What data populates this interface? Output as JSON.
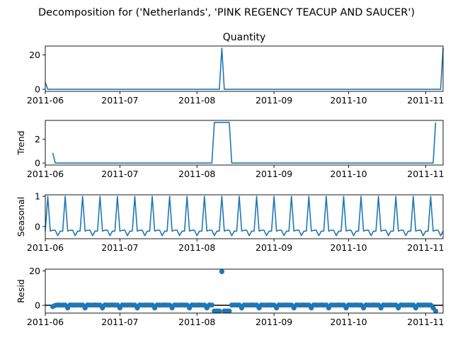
{
  "figure": {
    "suptitle": "Decomposition for ('Netherlands', 'PINK REGENCY TEACUP AND SAUCER')"
  },
  "colors": {
    "series": "#1f77b4",
    "axes": "#000000",
    "background": "#ffffff"
  },
  "chart_data": [
    {
      "type": "line",
      "title": "Quantity",
      "ylabel": "",
      "x_start": "2011-06-01",
      "x_end": "2011-11-08",
      "xlim": [
        "2011-06-01",
        "2011-11-08"
      ],
      "x_ticks": [
        "2011-06",
        "2011-07",
        "2011-08",
        "2011-09",
        "2011-10",
        "2011-11"
      ],
      "y_ticks": [
        0,
        20
      ],
      "ylim": [
        -1.2,
        25.2
      ],
      "grid": false,
      "series": [
        {
          "values": [
            {
              "x": "2011-06-01",
              "y": 4
            },
            {
              "x": "2011-06-02",
              "y": 0
            },
            {
              "x": "2011-08-10",
              "y": 0
            },
            {
              "x": "2011-08-11",
              "y": 24
            },
            {
              "x": "2011-08-12",
              "y": 0
            },
            {
              "x": "2011-11-07",
              "y": 0
            },
            {
              "x": "2011-11-08",
              "y": 24
            }
          ]
        }
      ]
    },
    {
      "type": "line",
      "title": "",
      "ylabel": "Trend",
      "x_start": "2011-06-01",
      "x_end": "2011-11-08",
      "xlim": [
        "2011-06-01",
        "2011-11-08"
      ],
      "x_ticks": [
        "2011-06",
        "2011-07",
        "2011-08",
        "2011-09",
        "2011-10",
        "2011-11"
      ],
      "y_ticks": [
        0,
        2
      ],
      "ylim": [
        -0.17,
        3.6
      ],
      "grid": false,
      "series": [
        {
          "values": [
            {
              "x": "2011-06-04",
              "y": 0.86
            },
            {
              "x": "2011-06-05",
              "y": 0
            },
            {
              "x": "2011-08-07",
              "y": 0
            },
            {
              "x": "2011-08-08",
              "y": 3.43
            },
            {
              "x": "2011-08-14",
              "y": 3.43
            },
            {
              "x": "2011-08-15",
              "y": 0
            },
            {
              "x": "2011-11-04",
              "y": 0
            },
            {
              "x": "2011-11-05",
              "y": 3.43
            }
          ]
        }
      ]
    },
    {
      "type": "line",
      "title": "",
      "ylabel": "Seasonal",
      "x_start": "2011-06-01",
      "x_end": "2011-11-08",
      "xlim": [
        "2011-06-01",
        "2011-11-08"
      ],
      "x_ticks": [
        "2011-06",
        "2011-07",
        "2011-08",
        "2011-09",
        "2011-10",
        "2011-11"
      ],
      "y_ticks": [
        0,
        1
      ],
      "ylim": [
        -0.4,
        1.05
      ],
      "grid": false,
      "period_days": 7,
      "weekly_pattern": [
        -0.15,
        1.0,
        -0.15,
        -0.12,
        -0.12,
        -0.3,
        -0.15
      ],
      "series": [
        {
          "values": "weekly_pattern repeated from 2011-06-01 to 2011-11-08"
        }
      ]
    },
    {
      "type": "scatter",
      "title": "",
      "ylabel": "Resid",
      "x_start": "2011-06-01",
      "x_end": "2011-11-08",
      "xlim": [
        "2011-06-01",
        "2011-11-08"
      ],
      "x_ticks": [
        "2011-06",
        "2011-07",
        "2011-08",
        "2011-09",
        "2011-10",
        "2011-11"
      ],
      "y_ticks": [
        0,
        20
      ],
      "ylim": [
        -4.5,
        21
      ],
      "grid": false,
      "zero_line": true,
      "series": [
        {
          "values": [
            {
              "x": "2011-06-04",
              "y": -0.75
            },
            {
              "x": "2011-06-05",
              "y": 0.0
            },
            {
              "x": "2011-06-06",
              "y": 0.2
            },
            {
              "x": "2011-06-07",
              "y": 0.1
            },
            {
              "x": "2011-06-08",
              "y": 0.15
            },
            {
              "x": "2011-06-09",
              "y": 0.15
            },
            {
              "x": "2011-06-10",
              "y": -1.5
            },
            {
              "x": "2011-06-11",
              "y": 0.2
            },
            {
              "x": "2011-06-12",
              "y": 0.15
            },
            {
              "x": "2011-06-13",
              "y": 0.15
            },
            {
              "x": "2011-06-14",
              "y": 0.2
            },
            {
              "x": "2011-06-15",
              "y": 0.15
            },
            {
              "x": "2011-06-16",
              "y": 0.15
            },
            {
              "x": "2011-06-17",
              "y": -1.5
            },
            {
              "x": "2011-06-18",
              "y": 0.2
            },
            {
              "x": "2011-06-19",
              "y": 0.15
            },
            {
              "x": "2011-06-20",
              "y": 0.15
            },
            {
              "x": "2011-06-21",
              "y": 0.2
            },
            {
              "x": "2011-06-22",
              "y": 0.15
            },
            {
              "x": "2011-06-23",
              "y": 0.15
            },
            {
              "x": "2011-06-24",
              "y": -1.5
            },
            {
              "x": "2011-06-25",
              "y": 0.2
            },
            {
              "x": "2011-06-26",
              "y": 0.15
            },
            {
              "x": "2011-06-27",
              "y": 0.15
            },
            {
              "x": "2011-06-28",
              "y": 0.2
            },
            {
              "x": "2011-06-29",
              "y": 0.15
            },
            {
              "x": "2011-06-30",
              "y": 0.15
            },
            {
              "x": "2011-07-01",
              "y": -1.5
            },
            {
              "x": "2011-07-02",
              "y": 0.2
            },
            {
              "x": "2011-07-03",
              "y": 0.15
            },
            {
              "x": "2011-07-04",
              "y": 0.15
            },
            {
              "x": "2011-07-05",
              "y": 0.2
            },
            {
              "x": "2011-07-06",
              "y": 0.15
            },
            {
              "x": "2011-07-07",
              "y": 0.15
            },
            {
              "x": "2011-07-08",
              "y": -1.5
            },
            {
              "x": "2011-07-09",
              "y": 0.2
            },
            {
              "x": "2011-07-10",
              "y": 0.15
            },
            {
              "x": "2011-07-11",
              "y": 0.15
            },
            {
              "x": "2011-07-12",
              "y": 0.2
            },
            {
              "x": "2011-07-13",
              "y": 0.15
            },
            {
              "x": "2011-07-14",
              "y": 0.15
            },
            {
              "x": "2011-07-15",
              "y": -1.5
            },
            {
              "x": "2011-07-16",
              "y": 0.2
            },
            {
              "x": "2011-07-17",
              "y": 0.15
            },
            {
              "x": "2011-07-18",
              "y": 0.15
            },
            {
              "x": "2011-07-19",
              "y": 0.2
            },
            {
              "x": "2011-07-20",
              "y": 0.15
            },
            {
              "x": "2011-07-21",
              "y": 0.15
            },
            {
              "x": "2011-07-22",
              "y": -1.5
            },
            {
              "x": "2011-07-23",
              "y": 0.2
            },
            {
              "x": "2011-07-24",
              "y": 0.15
            },
            {
              "x": "2011-07-25",
              "y": 0.15
            },
            {
              "x": "2011-07-26",
              "y": 0.2
            },
            {
              "x": "2011-07-27",
              "y": 0.15
            },
            {
              "x": "2011-07-28",
              "y": 0.15
            },
            {
              "x": "2011-07-29",
              "y": -1.5
            },
            {
              "x": "2011-07-30",
              "y": 0.2
            },
            {
              "x": "2011-07-31",
              "y": 0.15
            },
            {
              "x": "2011-08-01",
              "y": 0.15
            },
            {
              "x": "2011-08-02",
              "y": 0.2
            },
            {
              "x": "2011-08-03",
              "y": 0.15
            },
            {
              "x": "2011-08-04",
              "y": 0.15
            },
            {
              "x": "2011-08-05",
              "y": -1.5
            },
            {
              "x": "2011-08-06",
              "y": 0.2
            },
            {
              "x": "2011-08-07",
              "y": 0.15
            },
            {
              "x": "2011-08-08",
              "y": -3.3
            },
            {
              "x": "2011-08-09",
              "y": -3.3
            },
            {
              "x": "2011-08-10",
              "y": -3.3
            },
            {
              "x": "2011-08-11",
              "y": 19.6
            },
            {
              "x": "2011-08-12",
              "y": -3.3
            },
            {
              "x": "2011-08-13",
              "y": -3.3
            },
            {
              "x": "2011-08-14",
              "y": -3.3
            },
            {
              "x": "2011-08-15",
              "y": 0.15
            },
            {
              "x": "2011-08-16",
              "y": 0.2
            },
            {
              "x": "2011-08-17",
              "y": 0.15
            },
            {
              "x": "2011-08-18",
              "y": 0.15
            },
            {
              "x": "2011-08-19",
              "y": -1.5
            },
            {
              "x": "2011-08-20",
              "y": 0.2
            },
            {
              "x": "2011-08-21",
              "y": 0.15
            },
            {
              "x": "2011-08-22",
              "y": 0.15
            },
            {
              "x": "2011-08-23",
              "y": 0.2
            },
            {
              "x": "2011-08-24",
              "y": 0.15
            },
            {
              "x": "2011-08-25",
              "y": 0.15
            },
            {
              "x": "2011-08-26",
              "y": -1.5
            },
            {
              "x": "2011-08-27",
              "y": 0.2
            },
            {
              "x": "2011-08-28",
              "y": 0.15
            },
            {
              "x": "2011-08-29",
              "y": 0.15
            },
            {
              "x": "2011-08-30",
              "y": 0.2
            },
            {
              "x": "2011-08-31",
              "y": 0.15
            },
            {
              "x": "2011-09-01",
              "y": 0.15
            },
            {
              "x": "2011-09-02",
              "y": -1.5
            },
            {
              "x": "2011-09-03",
              "y": 0.2
            },
            {
              "x": "2011-09-04",
              "y": 0.15
            },
            {
              "x": "2011-09-05",
              "y": 0.15
            },
            {
              "x": "2011-09-06",
              "y": 0.2
            },
            {
              "x": "2011-09-07",
              "y": 0.15
            },
            {
              "x": "2011-09-08",
              "y": 0.15
            },
            {
              "x": "2011-09-09",
              "y": -1.5
            },
            {
              "x": "2011-09-10",
              "y": 0.2
            },
            {
              "x": "2011-09-11",
              "y": 0.15
            },
            {
              "x": "2011-09-12",
              "y": 0.15
            },
            {
              "x": "2011-09-13",
              "y": 0.2
            },
            {
              "x": "2011-09-14",
              "y": 0.15
            },
            {
              "x": "2011-09-15",
              "y": 0.15
            },
            {
              "x": "2011-09-16",
              "y": -1.5
            },
            {
              "x": "2011-09-17",
              "y": 0.2
            },
            {
              "x": "2011-09-18",
              "y": 0.15
            },
            {
              "x": "2011-09-19",
              "y": 0.15
            },
            {
              "x": "2011-09-20",
              "y": 0.2
            },
            {
              "x": "2011-09-21",
              "y": 0.15
            },
            {
              "x": "2011-09-22",
              "y": 0.15
            },
            {
              "x": "2011-09-23",
              "y": -1.5
            },
            {
              "x": "2011-09-24",
              "y": 0.2
            },
            {
              "x": "2011-09-25",
              "y": 0.15
            },
            {
              "x": "2011-09-26",
              "y": 0.15
            },
            {
              "x": "2011-09-27",
              "y": 0.2
            },
            {
              "x": "2011-09-28",
              "y": 0.15
            },
            {
              "x": "2011-09-29",
              "y": 0.15
            },
            {
              "x": "2011-09-30",
              "y": -1.5
            },
            {
              "x": "2011-10-01",
              "y": 0.2
            },
            {
              "x": "2011-10-02",
              "y": 0.15
            },
            {
              "x": "2011-10-03",
              "y": 0.15
            },
            {
              "x": "2011-10-04",
              "y": 0.2
            },
            {
              "x": "2011-10-05",
              "y": 0.15
            },
            {
              "x": "2011-10-06",
              "y": 0.15
            },
            {
              "x": "2011-10-07",
              "y": -1.5
            },
            {
              "x": "2011-10-08",
              "y": 0.2
            },
            {
              "x": "2011-10-09",
              "y": 0.15
            },
            {
              "x": "2011-10-10",
              "y": 0.15
            },
            {
              "x": "2011-10-11",
              "y": 0.2
            },
            {
              "x": "2011-10-12",
              "y": 0.15
            },
            {
              "x": "2011-10-13",
              "y": 0.15
            },
            {
              "x": "2011-10-14",
              "y": -1.5
            },
            {
              "x": "2011-10-15",
              "y": 0.2
            },
            {
              "x": "2011-10-16",
              "y": 0.15
            },
            {
              "x": "2011-10-17",
              "y": 0.15
            },
            {
              "x": "2011-10-18",
              "y": 0.2
            },
            {
              "x": "2011-10-19",
              "y": 0.15
            },
            {
              "x": "2011-10-20",
              "y": 0.15
            },
            {
              "x": "2011-10-21",
              "y": -1.5
            },
            {
              "x": "2011-10-22",
              "y": 0.2
            },
            {
              "x": "2011-10-23",
              "y": 0.15
            },
            {
              "x": "2011-10-24",
              "y": 0.15
            },
            {
              "x": "2011-10-25",
              "y": 0.2
            },
            {
              "x": "2011-10-26",
              "y": 0.15
            },
            {
              "x": "2011-10-27",
              "y": 0.15
            },
            {
              "x": "2011-10-28",
              "y": -1.5
            },
            {
              "x": "2011-10-29",
              "y": 0.2
            },
            {
              "x": "2011-10-30",
              "y": 0.15
            },
            {
              "x": "2011-10-31",
              "y": 0.15
            },
            {
              "x": "2011-11-01",
              "y": 0.2
            },
            {
              "x": "2011-11-02",
              "y": 0.15
            },
            {
              "x": "2011-11-03",
              "y": 0.15
            },
            {
              "x": "2011-11-04",
              "y": -1.5
            },
            {
              "x": "2011-11-05",
              "y": -3.3
            }
          ]
        }
      ]
    }
  ]
}
